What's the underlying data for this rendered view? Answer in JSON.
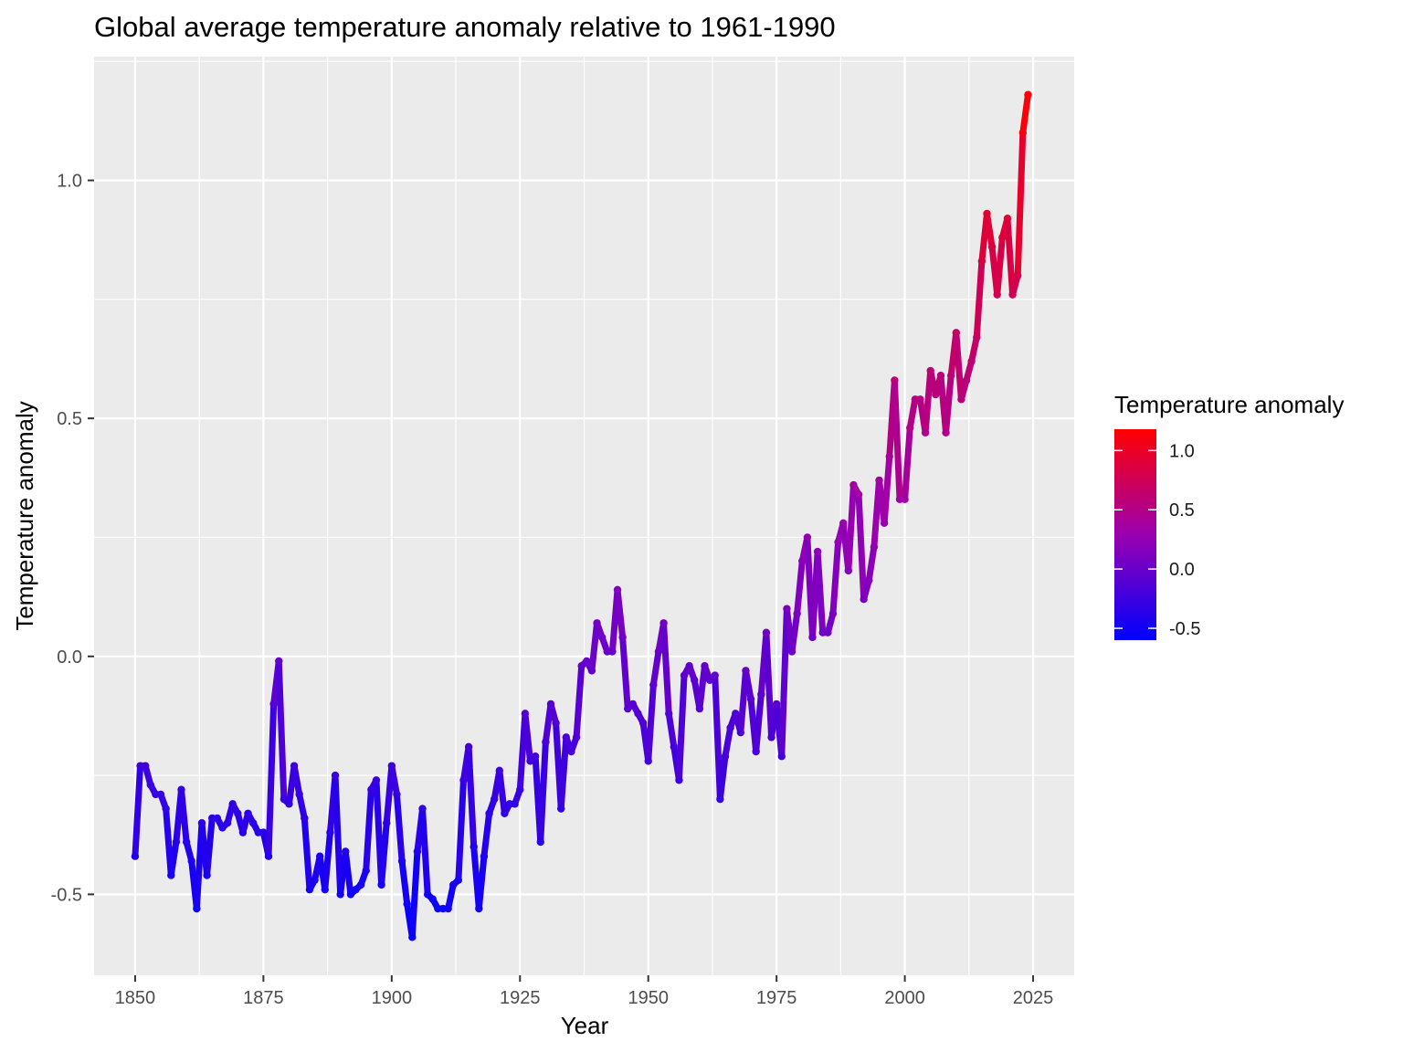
{
  "chart_data": {
    "type": "line",
    "title": "Global average temperature anomaly relative to 1961-1990",
    "xlabel": "Year",
    "ylabel": "Temperature anomaly",
    "xlim": [
      1842,
      2033
    ],
    "ylim": [
      -0.67,
      1.26
    ],
    "xticks": [
      1850,
      1875,
      1900,
      1925,
      1950,
      1975,
      2000,
      2025
    ],
    "xtick_labels": [
      "1850",
      "1875",
      "1900",
      "1925",
      "1950",
      "1975",
      "2000",
      "2025"
    ],
    "yticks": [
      -0.5,
      0.0,
      0.5,
      1.0
    ],
    "ytick_labels": [
      "-0.5",
      "0.0",
      "0.5",
      "1.0"
    ],
    "grid": true,
    "legend": {
      "title": "Temperature anomaly",
      "placement": "right",
      "ticks": [
        1.0,
        0.5,
        0.0,
        -0.5
      ],
      "tick_labels": [
        "1.0",
        "0.5",
        "0.0",
        "-0.5"
      ],
      "range": [
        -0.6,
        1.18
      ]
    },
    "colors": {
      "low": "#0000ff",
      "high": "#ff0000",
      "panel": "#ebebeb",
      "grid": "#ffffff"
    },
    "series": [
      {
        "x": [
          1850,
          1851,
          1852,
          1853,
          1854,
          1855,
          1856,
          1857,
          1858,
          1859,
          1860,
          1861,
          1862,
          1863,
          1864,
          1865,
          1866,
          1867,
          1868,
          1869,
          1870,
          1871,
          1872,
          1873,
          1874,
          1875,
          1876,
          1877,
          1878,
          1879,
          1880,
          1881,
          1882,
          1883,
          1884,
          1885,
          1886,
          1887,
          1888,
          1889,
          1890,
          1891,
          1892,
          1893,
          1894,
          1895,
          1896,
          1897,
          1898,
          1899,
          1900,
          1901,
          1902,
          1903,
          1904,
          1905,
          1906,
          1907,
          1908,
          1909,
          1910,
          1911,
          1912,
          1913,
          1914,
          1915,
          1916,
          1917,
          1918,
          1919,
          1920,
          1921,
          1922,
          1923,
          1924,
          1925,
          1926,
          1927,
          1928,
          1929,
          1930,
          1931,
          1932,
          1933,
          1934,
          1935,
          1936,
          1937,
          1938,
          1939,
          1940,
          1941,
          1942,
          1943,
          1944,
          1945,
          1946,
          1947,
          1948,
          1949,
          1950,
          1951,
          1952,
          1953,
          1954,
          1955,
          1956,
          1957,
          1958,
          1959,
          1960,
          1961,
          1962,
          1963,
          1964,
          1965,
          1966,
          1967,
          1968,
          1969,
          1970,
          1971,
          1972,
          1973,
          1974,
          1975,
          1976,
          1977,
          1978,
          1979,
          1980,
          1981,
          1982,
          1983,
          1984,
          1985,
          1986,
          1987,
          1988,
          1989,
          1990,
          1991,
          1992,
          1993,
          1994,
          1995,
          1996,
          1997,
          1998,
          1999,
          2000,
          2001,
          2002,
          2003,
          2004,
          2005,
          2006,
          2007,
          2008,
          2009,
          2010,
          2011,
          2012,
          2013,
          2014,
          2015,
          2016,
          2017,
          2018,
          2019,
          2020,
          2021,
          2022,
          2023,
          2024
        ],
        "values": [
          -0.42,
          -0.23,
          -0.23,
          -0.27,
          -0.29,
          -0.29,
          -0.32,
          -0.46,
          -0.39,
          -0.28,
          -0.39,
          -0.43,
          -0.53,
          -0.35,
          -0.46,
          -0.34,
          -0.34,
          -0.36,
          -0.35,
          -0.31,
          -0.33,
          -0.37,
          -0.33,
          -0.35,
          -0.37,
          -0.37,
          -0.42,
          -0.1,
          -0.01,
          -0.3,
          -0.31,
          -0.23,
          -0.29,
          -0.34,
          -0.49,
          -0.47,
          -0.42,
          -0.49,
          -0.37,
          -0.25,
          -0.5,
          -0.41,
          -0.5,
          -0.49,
          -0.48,
          -0.45,
          -0.28,
          -0.26,
          -0.48,
          -0.35,
          -0.23,
          -0.29,
          -0.43,
          -0.52,
          -0.59,
          -0.41,
          -0.32,
          -0.5,
          -0.51,
          -0.53,
          -0.53,
          -0.53,
          -0.48,
          -0.47,
          -0.26,
          -0.19,
          -0.4,
          -0.53,
          -0.42,
          -0.33,
          -0.3,
          -0.24,
          -0.33,
          -0.31,
          -0.31,
          -0.28,
          -0.12,
          -0.22,
          -0.21,
          -0.39,
          -0.18,
          -0.1,
          -0.14,
          -0.32,
          -0.17,
          -0.2,
          -0.17,
          -0.02,
          -0.01,
          -0.03,
          0.07,
          0.04,
          0.01,
          0.01,
          0.14,
          0.04,
          -0.11,
          -0.1,
          -0.12,
          -0.14,
          -0.22,
          -0.06,
          0.01,
          0.07,
          -0.12,
          -0.19,
          -0.26,
          -0.04,
          -0.02,
          -0.05,
          -0.11,
          -0.02,
          -0.05,
          -0.04,
          -0.3,
          -0.21,
          -0.15,
          -0.12,
          -0.16,
          -0.03,
          -0.09,
          -0.2,
          -0.08,
          0.05,
          -0.17,
          -0.1,
          -0.21,
          0.1,
          0.01,
          0.09,
          0.2,
          0.25,
          0.04,
          0.22,
          0.05,
          0.05,
          0.09,
          0.24,
          0.28,
          0.18,
          0.36,
          0.34,
          0.12,
          0.16,
          0.23,
          0.37,
          0.28,
          0.42,
          0.58,
          0.33,
          0.33,
          0.48,
          0.54,
          0.54,
          0.47,
          0.6,
          0.55,
          0.59,
          0.47,
          0.59,
          0.68,
          0.54,
          0.58,
          0.62,
          0.67,
          0.83,
          0.93,
          0.86,
          0.76,
          0.88,
          0.92,
          0.76,
          0.8,
          1.1,
          1.18
        ]
      }
    ]
  }
}
